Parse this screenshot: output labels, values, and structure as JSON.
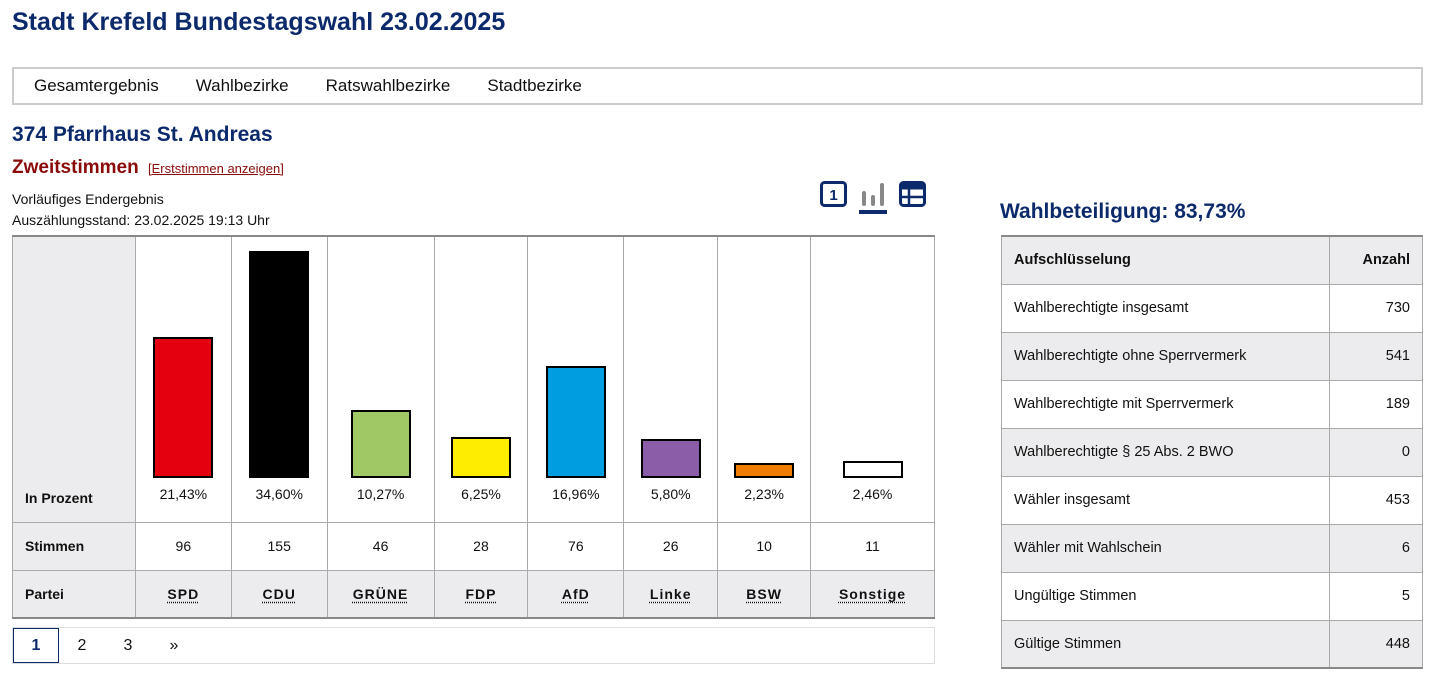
{
  "title": "Stadt Krefeld Bundestagswahl 23.02.2025",
  "nav": [
    "Gesamtergebnis",
    "Wahlbezirke",
    "Ratswahlbezirke",
    "Stadtbezirke"
  ],
  "district": "374 Pfarrhaus St. Andreas",
  "vote_type": "Zweitstimmen",
  "toggle_link": "[Erststimmen anzeigen]",
  "status": "Vorläufiges Endergebnis",
  "count_state": "Auszählungsstand: 23.02.2025 19:13 Uhr",
  "view_icons": [
    "number-view-icon",
    "bar-chart-icon",
    "table-view-icon"
  ],
  "row_labels": {
    "percent": "In Prozent",
    "votes": "Stimmen",
    "party": "Partei"
  },
  "chart_data": {
    "type": "bar",
    "categories": [
      "SPD",
      "CDU",
      "GRÜNE",
      "FDP",
      "AfD",
      "Linke",
      "BSW",
      "Sonstige"
    ],
    "values": [
      21.43,
      34.6,
      10.27,
      6.25,
      16.96,
      5.8,
      2.23,
      2.46
    ],
    "labels": [
      "21,43%",
      "34,60%",
      "10,27%",
      "6,25%",
      "16,96%",
      "5,80%",
      "2,23%",
      "2,46%"
    ],
    "votes": [
      "96",
      "155",
      "46",
      "28",
      "76",
      "26",
      "10",
      "11"
    ],
    "colors": [
      "#e3000f",
      "#000000",
      "#a0c864",
      "#ffed00",
      "#009ee0",
      "#8b5ca8",
      "#f07d00",
      "#ffffff"
    ]
  },
  "pagination": [
    "1",
    "2",
    "3",
    "»"
  ],
  "turnout": "Wahlbeteiligung: 83,73%",
  "stats": {
    "headers": [
      "Aufschlüsselung",
      "Anzahl"
    ],
    "rows": [
      [
        "Wahlberechtigte insgesamt",
        "730"
      ],
      [
        "Wahlberechtigte ohne Sperrvermerk",
        "541"
      ],
      [
        "Wahlberechtigte mit Sperrvermerk",
        "189"
      ],
      [
        "Wahlberechtigte § 25 Abs. 2 BWO",
        "0"
      ],
      [
        "Wähler insgesamt",
        "453"
      ],
      [
        "Wähler mit Wahlschein",
        "6"
      ],
      [
        "Ungültige Stimmen",
        "5"
      ],
      [
        "Gültige Stimmen",
        "448"
      ]
    ]
  }
}
